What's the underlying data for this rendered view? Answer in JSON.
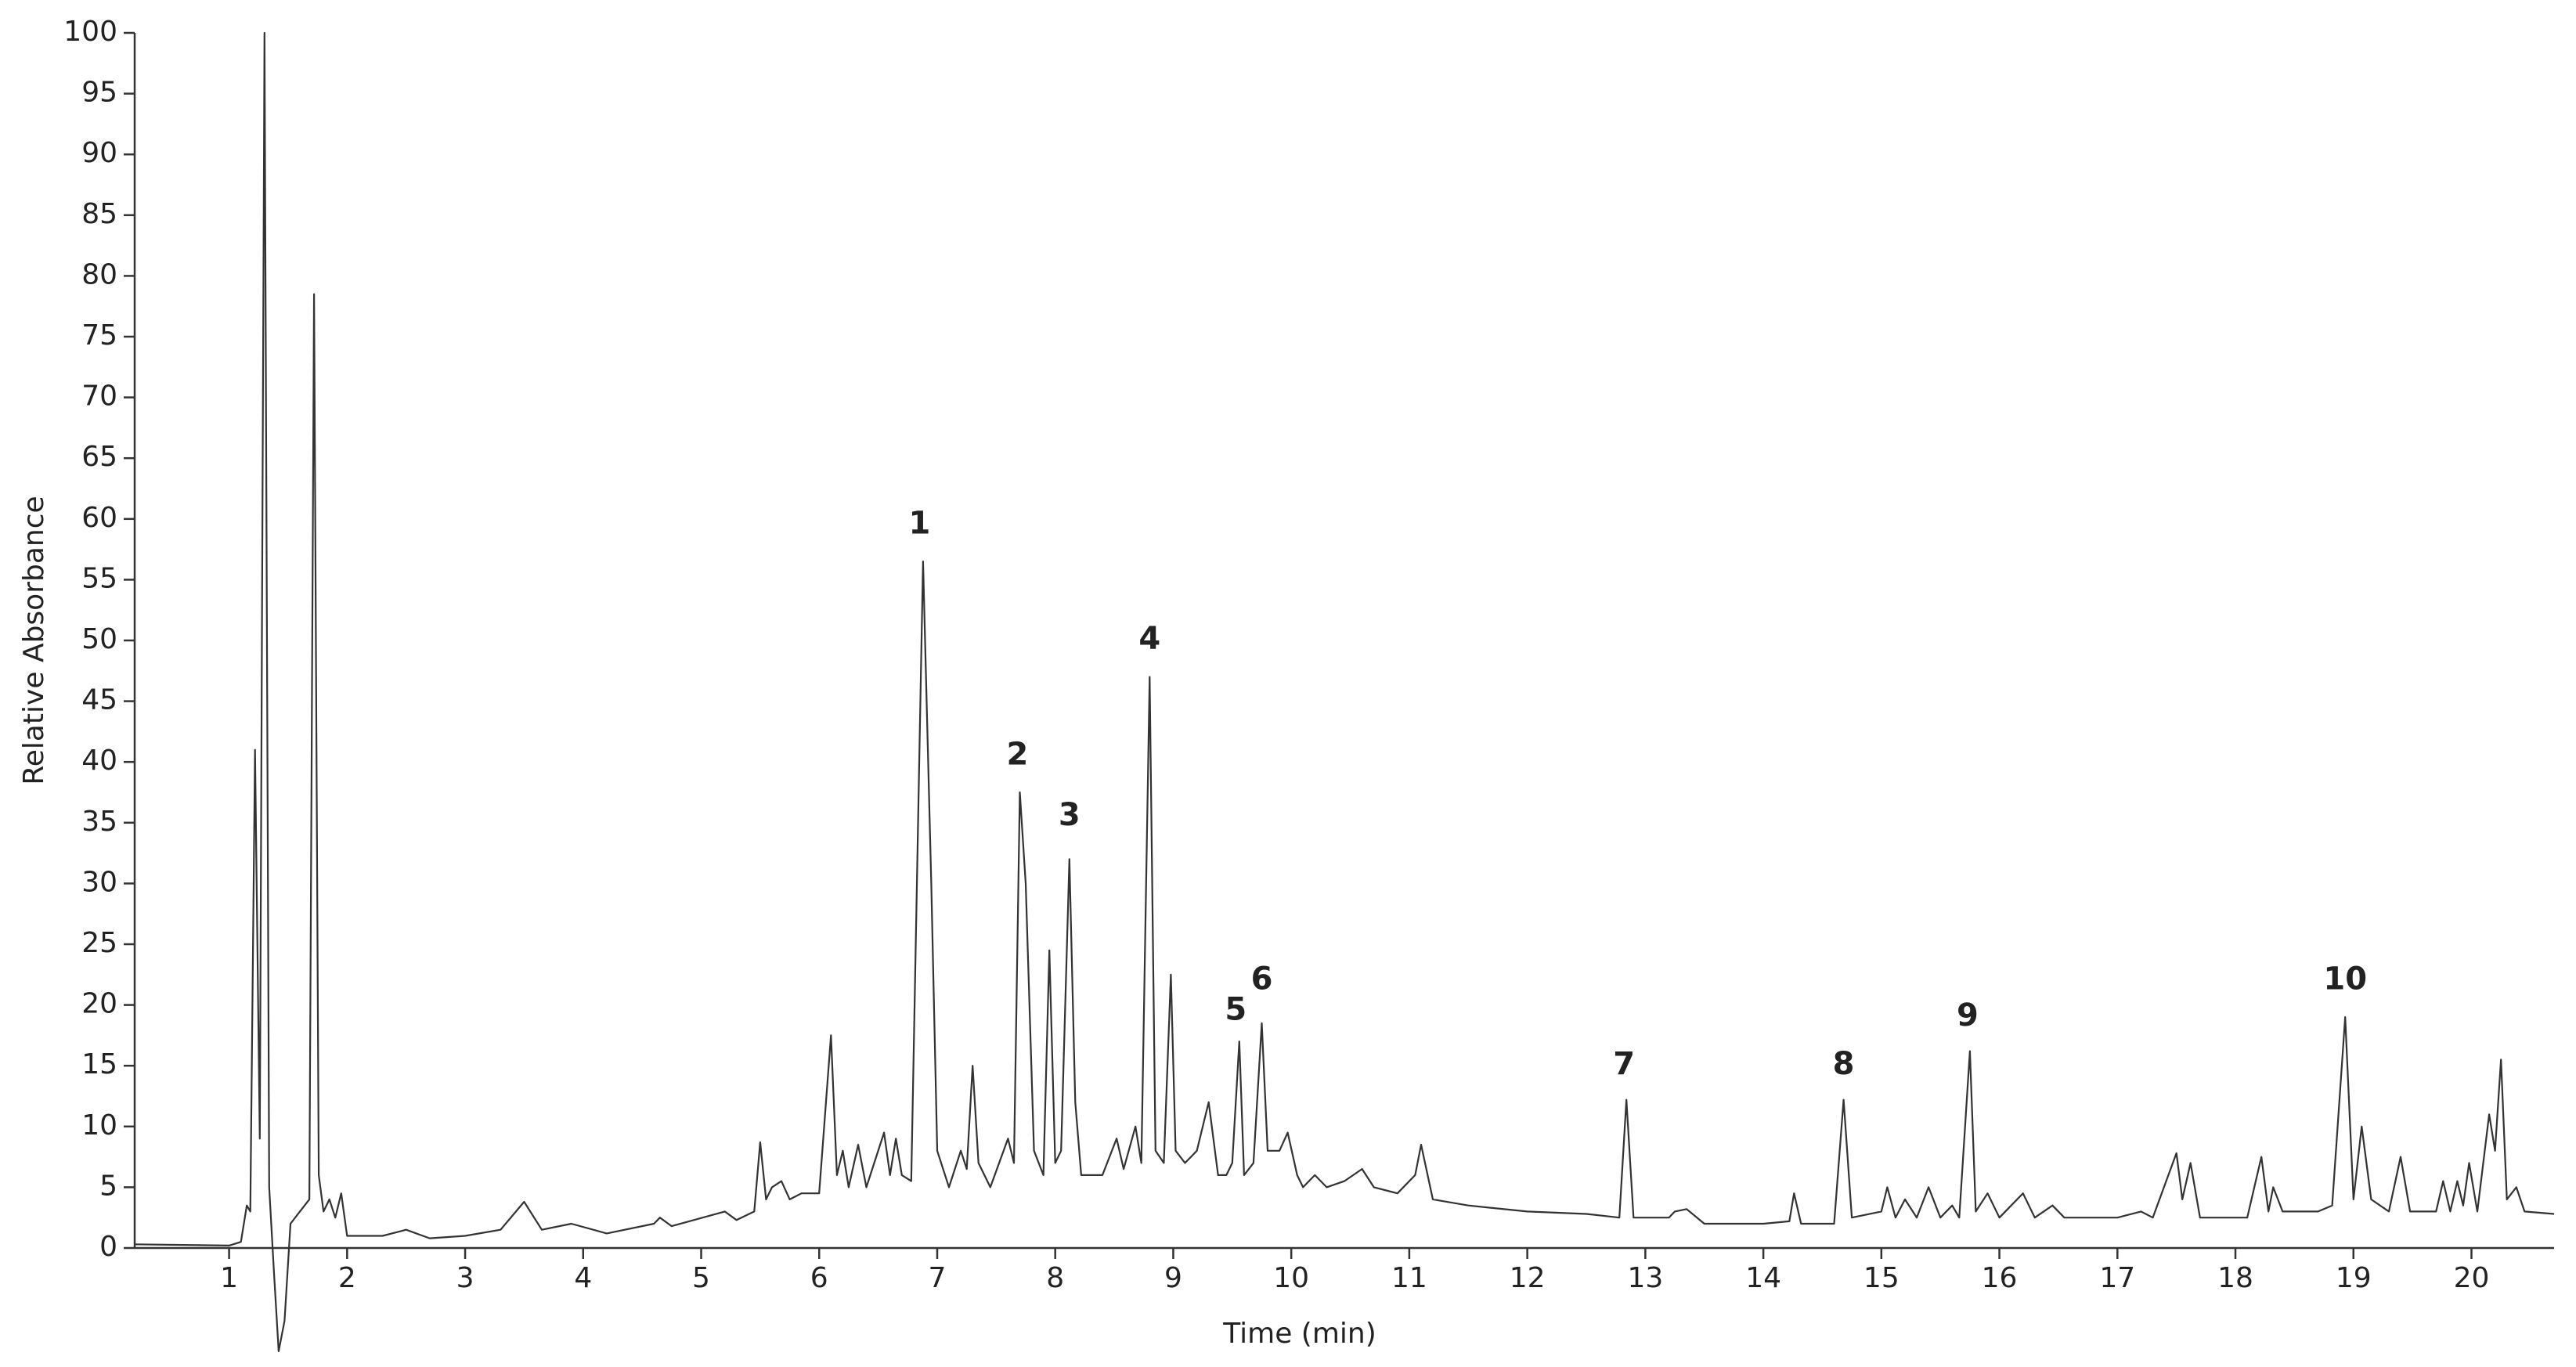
{
  "chart_data": {
    "type": "line",
    "x_label": "Time (min)",
    "y_label": "Relative Absorbance",
    "xlim": [
      0.2,
      20.7
    ],
    "ylim": [
      0,
      100
    ],
    "xticks": [
      1,
      2,
      3,
      4,
      5,
      6,
      7,
      8,
      9,
      10,
      11,
      12,
      13,
      14,
      15,
      16,
      17,
      18,
      19,
      20
    ],
    "yticks": [
      0,
      5,
      10,
      15,
      20,
      25,
      30,
      35,
      40,
      45,
      50,
      55,
      60,
      65,
      70,
      75,
      80,
      85,
      90,
      95,
      100
    ],
    "grid": false,
    "series": [
      {
        "color": "#333333",
        "x": [
          0.2,
          1.0,
          1.1,
          1.15,
          1.18,
          1.22,
          1.26,
          1.3,
          1.34,
          1.38,
          1.42,
          1.47,
          1.52,
          1.6,
          1.68,
          1.72,
          1.76,
          1.8,
          1.85,
          1.9,
          1.95,
          2.0,
          2.3,
          2.5,
          2.7,
          3.0,
          3.3,
          3.5,
          3.65,
          3.9,
          4.2,
          4.6,
          4.65,
          4.75,
          5.2,
          5.3,
          5.45,
          5.5,
          5.55,
          5.6,
          5.68,
          5.75,
          5.85,
          6.0,
          6.1,
          6.15,
          6.2,
          6.25,
          6.33,
          6.4,
          6.55,
          6.6,
          6.65,
          6.7,
          6.78,
          6.88,
          6.95,
          7.0,
          7.1,
          7.2,
          7.25,
          7.3,
          7.35,
          7.45,
          7.6,
          7.65,
          7.7,
          7.75,
          7.82,
          7.9,
          7.95,
          8.0,
          8.05,
          8.12,
          8.17,
          8.22,
          8.4,
          8.52,
          8.58,
          8.68,
          8.73,
          8.8,
          8.85,
          8.92,
          8.98,
          9.02,
          9.1,
          9.2,
          9.3,
          9.38,
          9.45,
          9.5,
          9.56,
          9.6,
          9.68,
          9.75,
          9.8,
          9.9,
          9.97,
          10.05,
          10.1,
          10.2,
          10.3,
          10.45,
          10.6,
          10.7,
          10.9,
          11.05,
          11.1,
          11.2,
          11.5,
          12.0,
          12.5,
          12.78,
          12.84,
          12.9,
          13.2,
          13.25,
          13.35,
          13.5,
          14.0,
          14.22,
          14.26,
          14.32,
          14.6,
          14.68,
          14.75,
          15.0,
          15.05,
          15.12,
          15.2,
          15.3,
          15.4,
          15.5,
          15.6,
          15.66,
          15.75,
          15.8,
          15.9,
          16.0,
          16.2,
          16.3,
          16.45,
          16.55,
          17.0,
          17.2,
          17.3,
          17.5,
          17.55,
          17.62,
          17.7,
          18.1,
          18.22,
          18.28,
          18.32,
          18.4,
          18.7,
          18.82,
          18.93,
          19.0,
          19.07,
          19.15,
          19.3,
          19.4,
          19.48,
          19.7,
          19.76,
          19.82,
          19.88,
          19.93,
          19.98,
          20.05,
          20.15,
          20.2,
          20.25,
          20.3,
          20.38,
          20.45,
          20.7
        ],
        "values": [
          0.3,
          0.2,
          0.5,
          3.5,
          3,
          41,
          9,
          100,
          5,
          -2,
          -8.5,
          -6,
          2,
          3,
          4,
          78.5,
          6,
          3,
          4,
          2.5,
          4.5,
          1,
          1,
          1.5,
          0.8,
          1,
          1.5,
          3.8,
          1.5,
          2,
          1.2,
          2,
          2.5,
          1.8,
          3,
          2.3,
          3,
          8.7,
          4,
          5,
          5.5,
          4,
          4.5,
          4.5,
          17.5,
          6,
          8,
          5,
          8.5,
          5,
          9.5,
          6,
          9,
          6,
          5.5,
          56.5,
          30,
          8,
          5,
          8,
          6.5,
          15,
          7,
          5,
          9,
          7,
          37.5,
          30,
          8,
          6,
          24.5,
          7,
          8,
          32,
          12,
          6,
          6,
          9,
          6.5,
          10,
          7,
          47,
          8,
          7,
          22.5,
          8,
          7,
          8,
          12,
          6,
          6,
          7,
          17,
          6,
          7,
          18.5,
          8,
          8,
          9.5,
          6,
          5,
          6,
          5,
          5.5,
          6.5,
          5,
          4.5,
          6,
          8.5,
          4,
          3.5,
          3,
          2.8,
          2.5,
          12.2,
          2.5,
          2.5,
          3,
          3.2,
          2,
          2,
          2.2,
          4.5,
          2,
          2,
          12.2,
          2.5,
          3,
          5,
          2.5,
          4,
          2.5,
          5,
          2.5,
          3.5,
          2.5,
          16.2,
          3,
          4.5,
          2.5,
          4.5,
          2.5,
          3.5,
          2.5,
          2.5,
          3,
          2.5,
          7.8,
          4,
          7,
          2.5,
          2.5,
          7.5,
          3,
          5,
          3,
          3,
          3.5,
          19,
          4,
          10,
          4,
          3,
          7.5,
          3,
          3,
          5.5,
          3,
          5.5,
          3.5,
          7,
          3,
          11,
          8,
          15.5,
          4,
          5,
          3,
          2.8
        ]
      }
    ],
    "annotations": [
      {
        "text": "1",
        "x": 6.85,
        "y": 59.5
      },
      {
        "text": "2",
        "x": 7.68,
        "y": 40.5
      },
      {
        "text": "3",
        "x": 8.12,
        "y": 35.5
      },
      {
        "text": "4",
        "x": 8.8,
        "y": 50
      },
      {
        "text": "5",
        "x": 9.53,
        "y": 19.5
      },
      {
        "text": "6",
        "x": 9.75,
        "y": 22
      },
      {
        "text": "7",
        "x": 12.82,
        "y": 15
      },
      {
        "text": "8",
        "x": 14.68,
        "y": 15
      },
      {
        "text": "9",
        "x": 15.73,
        "y": 19
      },
      {
        "text": "10",
        "x": 18.93,
        "y": 22
      }
    ]
  }
}
